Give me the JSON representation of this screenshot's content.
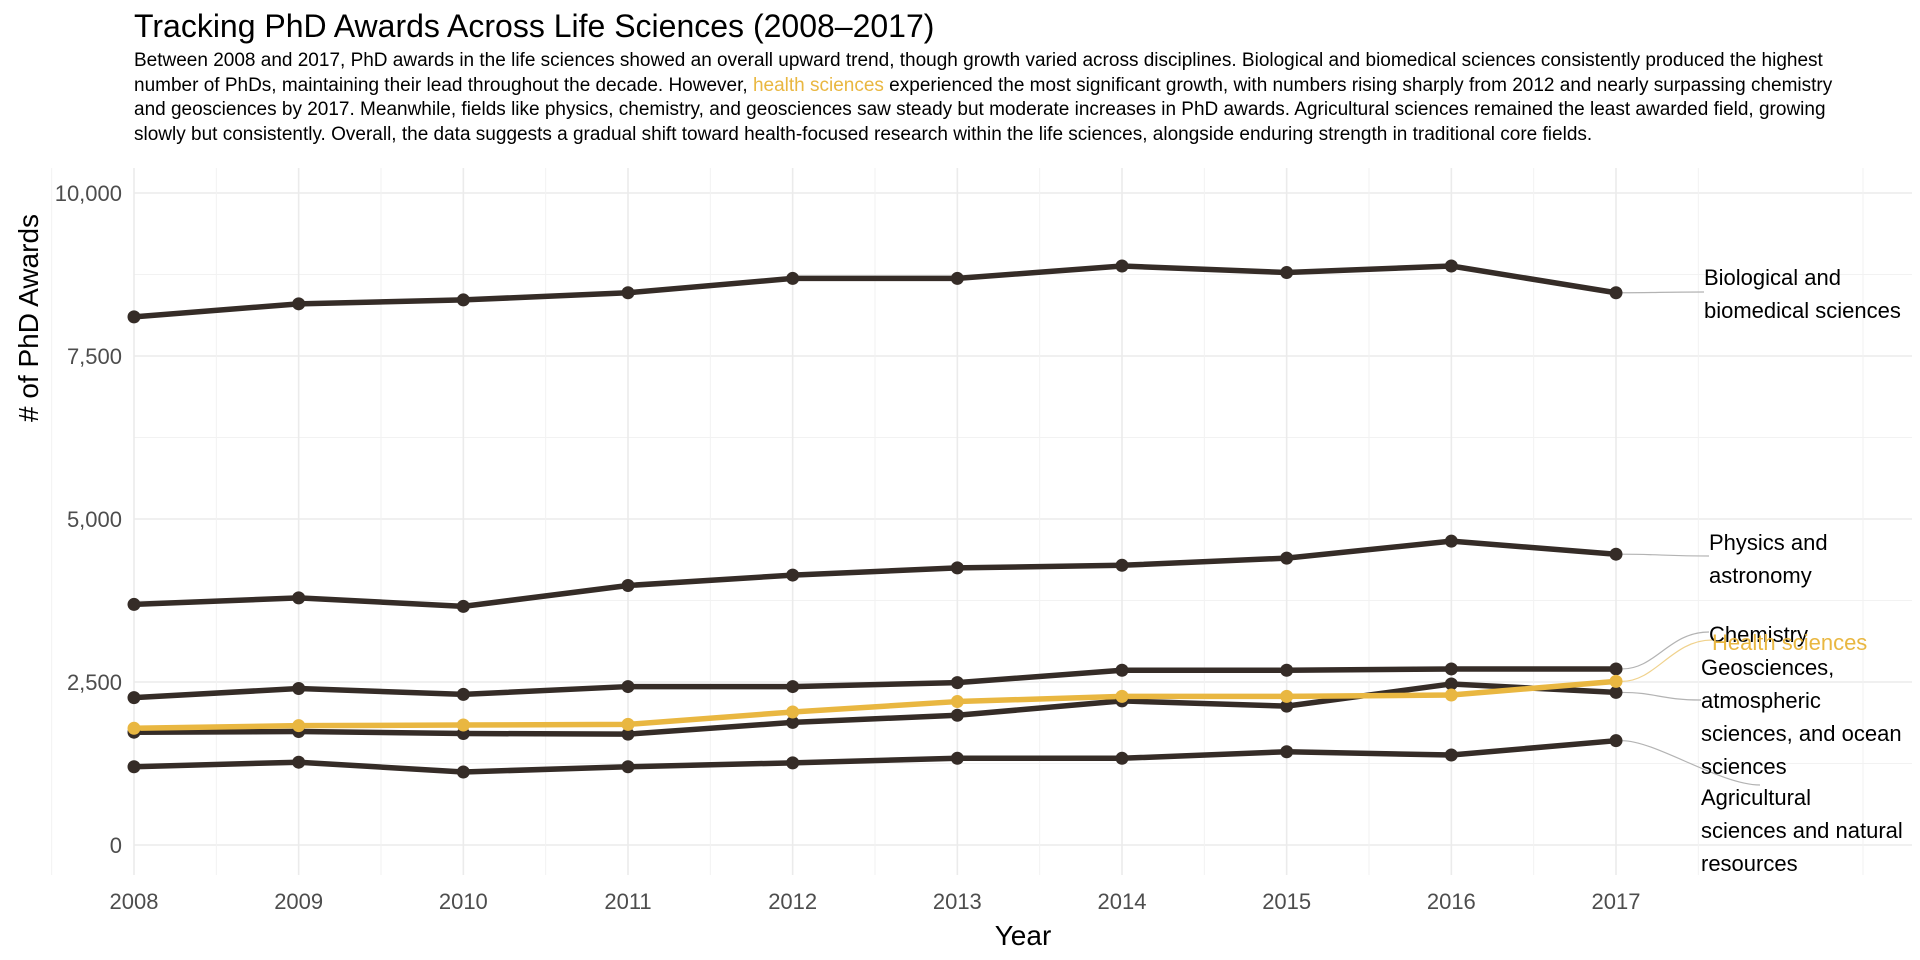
{
  "chart_data": {
    "type": "line",
    "title": "Tracking PhD Awards Across Life Sciences (2008–2017)",
    "subtitle": {
      "before": "Between 2008 and 2017, PhD awards in the life sciences showed an overall upward trend, though growth varied across disciplines. Biological and biomedical sciences consistently produced the highest number of PhDs, maintaining their lead throughout the decade. However, ",
      "highlight": "health sciences",
      "after": " experienced the most significant growth, with numbers rising sharply from 2012 and nearly surpassing chemistry and geosciences by 2017. Meanwhile, fields like physics, chemistry, and geosciences saw steady but moderate increases in PhD awards. Agricultural sciences remained the least awarded field, growing slowly but consistently. Overall, the data suggests a gradual shift toward health-focused research within the life sciences, alongside enduring strength in traditional core fields."
    },
    "xlabel": "Year",
    "ylabel": "# of PhD Awards",
    "x": [
      2008,
      2009,
      2010,
      2011,
      2012,
      2013,
      2014,
      2015,
      2016,
      2017
    ],
    "xlim": [
      2008,
      2019.3
    ],
    "ylim": [
      -600,
      10400
    ],
    "yticks": [
      0,
      2500,
      5000,
      7500,
      10000
    ],
    "ytick_labels": [
      "0",
      "2,500",
      "5,000",
      "7,500",
      "10,000"
    ],
    "grid": true,
    "legend": "direct labels at line ends (right)",
    "colors": {
      "default": "#352c27",
      "highlight": "#e9b741",
      "leader": "#b3b3b3"
    },
    "series": [
      {
        "name": "Biological and biomedical sciences",
        "label_lines": [
          "Biological and",
          "biomedical sciences"
        ],
        "highlight": false,
        "values": [
          8100,
          8300,
          8360,
          8470,
          8690,
          8690,
          8880,
          8780,
          8880,
          8470
        ]
      },
      {
        "name": "Physics and astronomy",
        "label_lines": [
          "Physics and",
          "astronomy"
        ],
        "highlight": false,
        "values": [
          3690,
          3790,
          3660,
          3980,
          4140,
          4250,
          4290,
          4400,
          4660,
          4460
        ]
      },
      {
        "name": "Chemistry",
        "label_lines": [
          "Chemistry"
        ],
        "highlight": false,
        "values": [
          2260,
          2400,
          2310,
          2430,
          2430,
          2490,
          2680,
          2680,
          2700,
          2700
        ]
      },
      {
        "name": "Geosciences, atmospheric sciences, and ocean sciences",
        "label_lines": [
          "Geosciences,",
          "atmospheric",
          "sciences, and ocean",
          "sciences"
        ],
        "highlight": false,
        "values": [
          1730,
          1740,
          1710,
          1700,
          1880,
          1990,
          2210,
          2130,
          2470,
          2340
        ]
      },
      {
        "name": "Agricultural sciences and natural resources",
        "label_lines": [
          "Agricultural",
          "sciences and natural",
          "resources"
        ],
        "highlight": false,
        "values": [
          1200,
          1270,
          1120,
          1200,
          1260,
          1330,
          1330,
          1430,
          1380,
          1600
        ]
      },
      {
        "name": "Health sciences",
        "label_lines": [
          "Health sciences"
        ],
        "highlight": true,
        "values": [
          1790,
          1830,
          1840,
          1850,
          2040,
          2200,
          2280,
          2280,
          2300,
          2510
        ]
      }
    ]
  }
}
